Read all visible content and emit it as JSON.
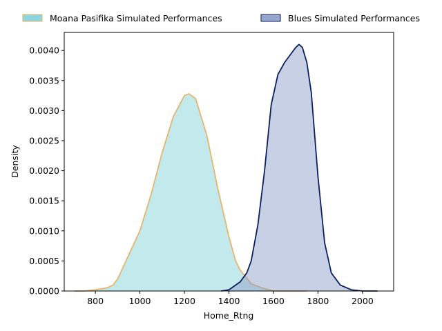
{
  "chart_data": {
    "type": "area",
    "title": "",
    "xlabel": "Home_Rtng",
    "ylabel": "Density",
    "xlim": [
      660,
      2140
    ],
    "ylim": [
      0,
      0.0043
    ],
    "x_ticks": [
      800,
      1000,
      1200,
      1400,
      1600,
      1800,
      2000
    ],
    "x_tick_labels": [
      "800",
      "1000",
      "1200",
      "1400",
      "1600",
      "1800",
      "2000"
    ],
    "y_ticks": [
      0,
      0.0005,
      0.001,
      0.0015,
      0.002,
      0.0025,
      0.003,
      0.0035,
      0.004
    ],
    "y_tick_labels": [
      "0.0000",
      "0.0005",
      "0.0010",
      "0.0015",
      "0.0020",
      "0.0025",
      "0.0030",
      "0.0035",
      "0.0040"
    ],
    "grid": false,
    "legend_position": "top",
    "series": [
      {
        "name": "Moana Pasifika Simulated Performances",
        "fill_color": "#7fd3da",
        "line_color": "#e8b36e",
        "fill_opacity": 0.48,
        "x": [
          705,
          750,
          800,
          850,
          880,
          900,
          950,
          1000,
          1050,
          1100,
          1150,
          1200,
          1220,
          1250,
          1300,
          1350,
          1400,
          1430,
          1450,
          1500,
          1550,
          1600,
          1650,
          1700,
          1750
        ],
        "y": [
          0.0,
          0.0,
          2e-05,
          5e-05,
          0.0001,
          0.0002,
          0.0006,
          0.001,
          0.0016,
          0.0023,
          0.0029,
          0.00325,
          0.00328,
          0.0032,
          0.0026,
          0.0017,
          0.0009,
          0.0005,
          0.00035,
          0.00012,
          5e-05,
          0.0,
          0.0,
          0.0,
          0.0
        ]
      },
      {
        "name": "Blues Simulated Performances",
        "fill_color": "#8c9dc8",
        "line_color": "#0b1f5e",
        "fill_opacity": 0.48,
        "x": [
          1365,
          1400,
          1450,
          1480,
          1500,
          1530,
          1560,
          1590,
          1620,
          1650,
          1680,
          1700,
          1715,
          1730,
          1750,
          1770,
          1800,
          1830,
          1860,
          1900,
          1950,
          2000,
          2050,
          2068
        ],
        "y": [
          0.0,
          2e-05,
          0.00015,
          0.0003,
          0.0005,
          0.0011,
          0.002,
          0.0031,
          0.0036,
          0.0038,
          0.00395,
          0.00405,
          0.0041,
          0.00405,
          0.0038,
          0.0033,
          0.0019,
          0.0008,
          0.0003,
          0.0001,
          2e-05,
          0.0,
          0.0,
          0.0
        ]
      }
    ]
  }
}
